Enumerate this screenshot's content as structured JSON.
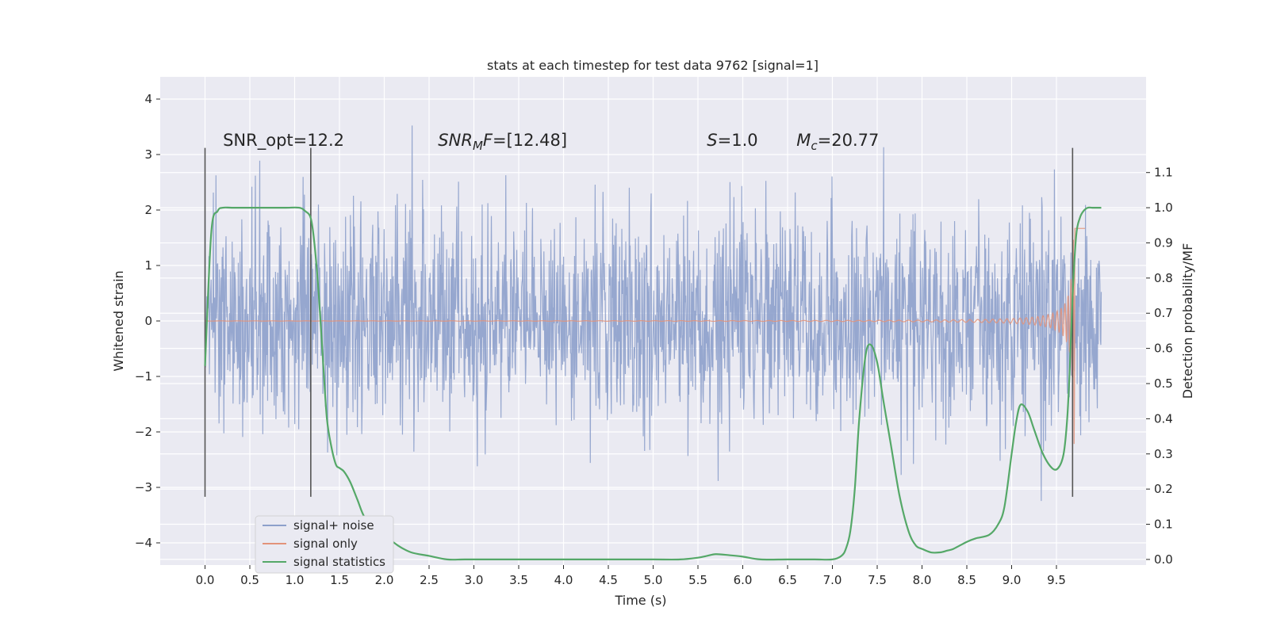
{
  "chart_data": {
    "type": "line",
    "title": "stats at each timestep for test data 9762 [signal=1]",
    "xlabel": "Time (s)",
    "ylabel": "Whitened strain",
    "ylabel_right": "Detection probability/MF",
    "xlim": [
      -0.5,
      10.5
    ],
    "ylim": [
      -4.4,
      4.4
    ],
    "ylim_right": [
      -0.016,
      1.372
    ],
    "x_ticks": [
      "0.0",
      "0.5",
      "1.0",
      "1.5",
      "2.0",
      "2.5",
      "3.0",
      "3.5",
      "4.0",
      "4.5",
      "5.0",
      "5.5",
      "6.0",
      "6.5",
      "7.0",
      "7.5",
      "8.0",
      "8.5",
      "9.0",
      "9.5"
    ],
    "y_ticks": [
      "4",
      "3",
      "2",
      "1",
      "0",
      "−1",
      "−2",
      "−3",
      "−4"
    ],
    "y_ticks_right": [
      "1.1",
      "1.0",
      "0.9",
      "0.8",
      "0.7",
      "0.6",
      "0.5",
      "0.4",
      "0.3",
      "0.2",
      "0.1",
      "0.0"
    ],
    "grid": true,
    "legend_position": "lower-left",
    "colors": {
      "noise": "#8da0cb",
      "signal": "#e3937a",
      "statistics": "#55a868",
      "background": "#eaeaf2",
      "marker": "#555555"
    },
    "series": [
      {
        "name": "signal+ noise",
        "x_range": [
          0,
          10
        ],
        "envelope": "band roughly between -1.2 and +1.25 with spikes up to about 4.0 and down to about -3.6"
      },
      {
        "name": "signal only",
        "x_range": [
          0,
          10
        ],
        "description": "chirp oscillation near 0 growing from 7.5 s, reaching about +-2.5 near 9.7 s"
      },
      {
        "name": "signal statistics",
        "axis": "right",
        "x": [
          0.0,
          0.07,
          0.14,
          0.2,
          0.3,
          0.5,
          0.7,
          0.9,
          1.05,
          1.12,
          1.18,
          1.22,
          1.27,
          1.32,
          1.36,
          1.41,
          1.46,
          1.5,
          1.55,
          1.62,
          1.7,
          1.78,
          1.9,
          2.0,
          2.15,
          2.3,
          2.5,
          2.7,
          2.9,
          3.2,
          3.5,
          3.8,
          4.2,
          4.6,
          5.0,
          5.3,
          5.5,
          5.6,
          5.7,
          5.85,
          6.0,
          6.2,
          6.5,
          6.8,
          7.0,
          7.1,
          7.15,
          7.2,
          7.25,
          7.3,
          7.37,
          7.43,
          7.5,
          7.57,
          7.65,
          7.75,
          7.85,
          7.93,
          8.0,
          8.1,
          8.2,
          8.28,
          8.35,
          8.5,
          8.6,
          8.75,
          8.85,
          8.92,
          9.0,
          9.05,
          9.1,
          9.18,
          9.25,
          9.35,
          9.45,
          9.52,
          9.58,
          9.62,
          9.65,
          9.68,
          9.72,
          9.76,
          9.8,
          9.85,
          9.9,
          9.95,
          10.0
        ],
        "y": [
          0.55,
          0.93,
          0.99,
          1.0,
          1.0,
          1.0,
          1.0,
          1.0,
          1.0,
          0.99,
          0.97,
          0.9,
          0.75,
          0.55,
          0.4,
          0.32,
          0.27,
          0.26,
          0.25,
          0.22,
          0.17,
          0.12,
          0.09,
          0.07,
          0.04,
          0.02,
          0.01,
          0.0,
          0.0,
          0.0,
          0.0,
          0.0,
          0.0,
          0.0,
          0.0,
          0.0,
          0.005,
          0.01,
          0.015,
          0.012,
          0.008,
          0.0,
          0.0,
          0.0,
          0.0,
          0.01,
          0.03,
          0.08,
          0.2,
          0.4,
          0.58,
          0.61,
          0.56,
          0.45,
          0.33,
          0.18,
          0.08,
          0.04,
          0.03,
          0.02,
          0.02,
          0.025,
          0.03,
          0.05,
          0.06,
          0.07,
          0.1,
          0.15,
          0.3,
          0.39,
          0.44,
          0.42,
          0.37,
          0.3,
          0.26,
          0.26,
          0.3,
          0.4,
          0.55,
          0.75,
          0.92,
          0.97,
          0.99,
          1.0,
          1.0,
          1.0,
          1.0
        ]
      }
    ],
    "vertical_markers": [
      0.0,
      1.18,
      9.68
    ],
    "annotations": [
      {
        "plain": "SNR_opt=12.2",
        "x": 0.2
      },
      {
        "pre": "SNR",
        "sub": "M",
        "post": "F=[12.48]",
        "x": 2.6
      },
      {
        "pre": "S",
        "post": "=1.0",
        "x": 5.6
      },
      {
        "pre": "M",
        "sub": "c",
        "post": "=20.77",
        "x": 6.6
      }
    ],
    "legend": [
      "signal+ noise",
      "signal only",
      "signal statistics"
    ]
  }
}
